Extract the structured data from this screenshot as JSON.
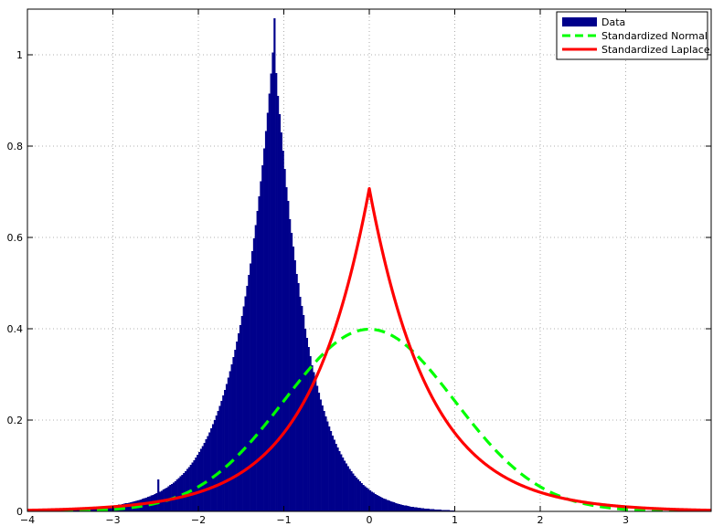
{
  "chart_data": {
    "type": "histogram",
    "xlim": [
      -4,
      4
    ],
    "ylim": [
      0,
      1.1
    ],
    "grid": true,
    "grid_style": "dotted",
    "legend_placement": "top-right",
    "x_ticks": [
      "−4",
      "−3",
      "−2",
      "−1",
      "0",
      "1",
      "2",
      "3"
    ],
    "x_tick_values": [
      -4,
      -3,
      -2,
      -1,
      0,
      1,
      2,
      3
    ],
    "y_ticks": [
      "0",
      "0.2",
      "0.4",
      "0.6",
      "0.8",
      "1"
    ],
    "y_tick_values": [
      0,
      0.2,
      0.4,
      0.6,
      0.8,
      1.0
    ],
    "series": [
      {
        "name": "Data",
        "kind": "histogram",
        "color": "#00008b",
        "bin_width": 0.02,
        "bin_start": -3.6,
        "bin_heights": [
          0.002,
          0.002,
          0.002,
          0.003,
          0.003,
          0.003,
          0.003,
          0.004,
          0.004,
          0.004,
          0.005,
          0.005,
          0.005,
          0.005,
          0.006,
          0.006,
          0.006,
          0.007,
          0.007,
          0.008,
          0.008,
          0.008,
          0.009,
          0.009,
          0.01,
          0.01,
          0.011,
          0.011,
          0.012,
          0.012,
          0.013,
          0.013,
          0.014,
          0.015,
          0.015,
          0.016,
          0.017,
          0.018,
          0.018,
          0.019,
          0.02,
          0.021,
          0.022,
          0.023,
          0.024,
          0.025,
          0.026,
          0.028,
          0.029,
          0.03,
          0.032,
          0.033,
          0.035,
          0.036,
          0.038,
          0.04,
          0.07,
          0.043,
          0.045,
          0.048,
          0.05,
          0.052,
          0.055,
          0.058,
          0.06,
          0.063,
          0.066,
          0.07,
          0.073,
          0.077,
          0.08,
          0.084,
          0.088,
          0.093,
          0.097,
          0.102,
          0.107,
          0.112,
          0.118,
          0.124,
          0.13,
          0.137,
          0.143,
          0.15,
          0.158,
          0.165,
          0.173,
          0.182,
          0.191,
          0.2,
          0.21,
          0.22,
          0.231,
          0.242,
          0.254,
          0.266,
          0.279,
          0.293,
          0.307,
          0.322,
          0.338,
          0.354,
          0.372,
          0.39,
          0.408,
          0.428,
          0.449,
          0.471,
          0.494,
          0.518,
          0.543,
          0.57,
          0.598,
          0.627,
          0.658,
          0.69,
          0.723,
          0.758,
          0.795,
          0.833,
          0.873,
          0.915,
          0.959,
          1.005,
          1.08,
          0.96,
          0.91,
          0.87,
          0.83,
          0.79,
          0.75,
          0.71,
          0.68,
          0.64,
          0.61,
          0.58,
          0.55,
          0.52,
          0.5,
          0.47,
          0.45,
          0.43,
          0.4,
          0.38,
          0.36,
          0.34,
          0.32,
          0.305,
          0.29,
          0.275,
          0.26,
          0.245,
          0.232,
          0.22,
          0.208,
          0.197,
          0.186,
          0.176,
          0.166,
          0.157,
          0.148,
          0.14,
          0.132,
          0.125,
          0.118,
          0.111,
          0.105,
          0.099,
          0.093,
          0.088,
          0.083,
          0.078,
          0.074,
          0.07,
          0.066,
          0.062,
          0.058,
          0.055,
          0.052,
          0.049,
          0.046,
          0.043,
          0.041,
          0.038,
          0.036,
          0.034,
          0.032,
          0.03,
          0.028,
          0.027,
          0.025,
          0.024,
          0.022,
          0.021,
          0.02,
          0.018,
          0.017,
          0.016,
          0.015,
          0.014,
          0.013,
          0.013,
          0.012,
          0.011,
          0.01,
          0.01,
          0.009,
          0.009,
          0.008,
          0.008,
          0.007,
          0.007,
          0.006,
          0.006,
          0.006,
          0.005,
          0.005,
          0.005,
          0.004,
          0.004,
          0.004,
          0.004,
          0.003,
          0.003,
          0.003,
          0.003,
          0.003,
          0.002,
          0.002,
          0.002
        ]
      },
      {
        "name": "Standardized Normal",
        "kind": "line",
        "color": "#00ff00",
        "dashed": true,
        "function": "normal_pdf",
        "mu": 0,
        "sigma": 1,
        "x": [
          -4,
          -3.8,
          -3.6,
          -3.4,
          -3.2,
          -3,
          -2.8,
          -2.6,
          -2.4,
          -2.2,
          -2,
          -1.8,
          -1.6,
          -1.4,
          -1.2,
          -1,
          -0.8,
          -0.6,
          -0.4,
          -0.2,
          0,
          0.2,
          0.4,
          0.6,
          0.8,
          1,
          1.2,
          1.4,
          1.6,
          1.8,
          2,
          2.2,
          2.4,
          2.6,
          2.8,
          3,
          3.2,
          3.4,
          3.6,
          3.8,
          4
        ],
        "y": [
          0.0001,
          0.0003,
          0.0006,
          0.0012,
          0.0024,
          0.0044,
          0.0079,
          0.0136,
          0.0224,
          0.0355,
          0.054,
          0.079,
          0.1109,
          0.1497,
          0.1942,
          0.242,
          0.2897,
          0.3332,
          0.3683,
          0.391,
          0.3989,
          0.391,
          0.3683,
          0.3332,
          0.2897,
          0.242,
          0.1942,
          0.1497,
          0.1109,
          0.079,
          0.054,
          0.0355,
          0.0224,
          0.0136,
          0.0079,
          0.0044,
          0.0024,
          0.0012,
          0.0006,
          0.0003,
          0.0001
        ]
      },
      {
        "name": "Standardized Laplace",
        "kind": "line",
        "color": "#ff0000",
        "dashed": false,
        "function": "laplace_pdf",
        "mu": 0,
        "b": 0.7071,
        "x": [
          -4,
          -3.6,
          -3.2,
          -2.8,
          -2.4,
          -2,
          -1.8,
          -1.6,
          -1.4,
          -1.2,
          -1,
          -0.8,
          -0.6,
          -0.4,
          -0.2,
          0,
          0.2,
          0.4,
          0.6,
          0.8,
          1,
          1.2,
          1.4,
          1.6,
          1.8,
          2,
          2.4,
          2.8,
          3.2,
          3.6,
          4
        ],
        "y": [
          0.0025,
          0.0044,
          0.0077,
          0.0134,
          0.0234,
          0.0419,
          0.0555,
          0.0737,
          0.0977,
          0.1296,
          0.1719,
          0.228,
          0.3025,
          0.4012,
          0.5322,
          0.7071,
          0.5322,
          0.4012,
          0.3025,
          0.228,
          0.1719,
          0.1296,
          0.0977,
          0.0737,
          0.0555,
          0.0419,
          0.0234,
          0.0134,
          0.0077,
          0.0044,
          0.0025
        ]
      }
    ],
    "legend": [
      "Data",
      "Standardized Normal",
      "Standardized Laplace"
    ]
  }
}
